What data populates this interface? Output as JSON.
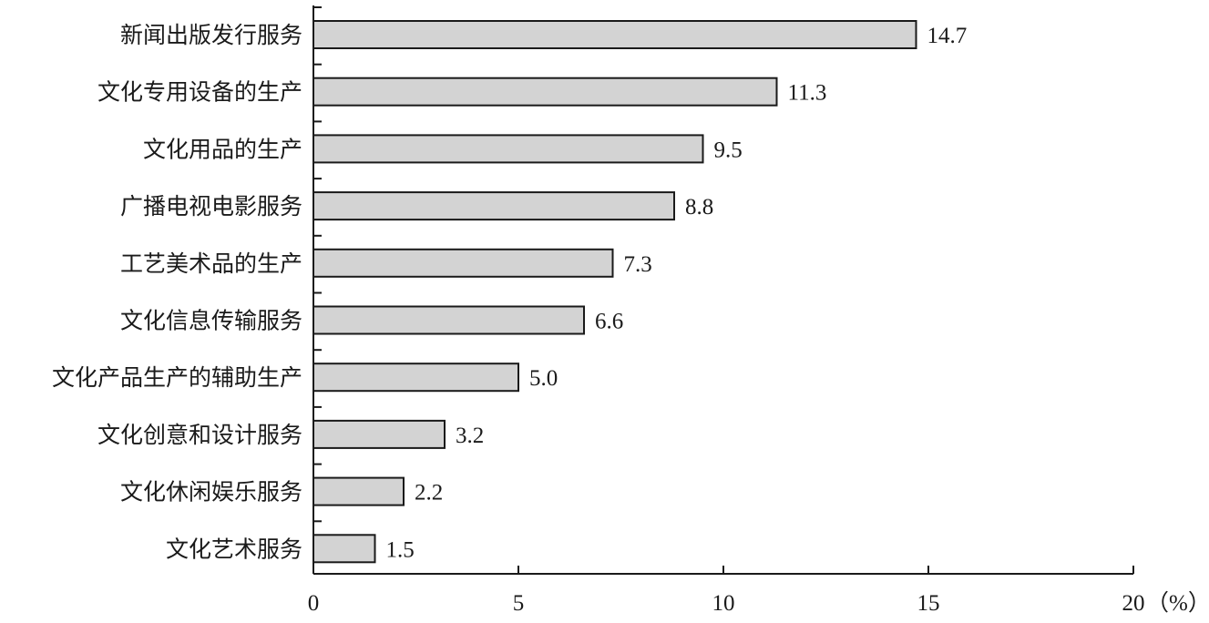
{
  "chart_data": {
    "type": "bar",
    "orientation": "horizontal",
    "categories": [
      "新闻出版发行服务",
      "文化专用设备的生产",
      "文化用品的生产",
      "广播电视电影服务",
      "工艺美术品的生产",
      "文化信息传输服务",
      "文化产品生产的辅助生产",
      "文化创意和设计服务",
      "文化休闲娱乐服务",
      "文化艺术服务"
    ],
    "values": [
      14.7,
      11.3,
      9.5,
      8.8,
      7.3,
      6.6,
      5.0,
      3.2,
      2.2,
      1.5
    ],
    "value_labels": [
      "14.7",
      "11.3",
      "9.5",
      "8.8",
      "7.3",
      "6.6",
      "5.0",
      "3.2",
      "2.2",
      "1.5"
    ],
    "xlim": [
      0,
      20
    ],
    "xticks": [
      0,
      5,
      10,
      15,
      20
    ],
    "xtick_labels": [
      "0",
      "5",
      "10",
      "15",
      "20"
    ],
    "x_unit": "（%）",
    "grid": false,
    "bar_color": "#d3d3d3",
    "edge_color": "#1a1a1a"
  }
}
